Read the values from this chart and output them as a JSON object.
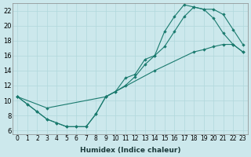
{
  "xlabel": "Humidex (Indice chaleur)",
  "bg_color": "#cce8ec",
  "line_color": "#1a7a6e",
  "xlim": [
    -0.5,
    23.5
  ],
  "ylim": [
    5.5,
    23.0
  ],
  "xticks": [
    0,
    1,
    2,
    3,
    4,
    5,
    6,
    7,
    8,
    9,
    10,
    11,
    12,
    13,
    14,
    15,
    16,
    17,
    18,
    19,
    20,
    21,
    22,
    23
  ],
  "yticks": [
    6,
    8,
    10,
    12,
    14,
    16,
    18,
    20,
    22
  ],
  "line1_x": [
    0,
    1,
    2,
    3,
    4,
    5,
    6,
    7,
    8,
    9,
    10,
    11,
    12,
    13,
    14,
    15,
    16,
    17,
    18,
    19,
    20,
    21,
    22,
    23
  ],
  "line1_y": [
    10.5,
    9.5,
    8.5,
    7.5,
    7.0,
    6.5,
    6.5,
    6.5,
    8.2,
    10.5,
    11.2,
    13.0,
    13.5,
    15.5,
    16.0,
    19.2,
    21.2,
    22.8,
    22.5,
    22.2,
    21.0,
    19.0,
    17.5,
    16.5
  ],
  "line2_x": [
    0,
    1,
    2,
    3,
    4,
    5,
    6,
    7,
    8,
    9,
    10,
    11,
    12,
    13,
    14,
    15,
    16,
    17,
    18,
    19,
    20,
    21,
    22,
    23
  ],
  "line2_y": [
    10.5,
    9.5,
    8.5,
    7.5,
    7.0,
    6.5,
    6.5,
    6.5,
    8.2,
    10.5,
    11.2,
    12.0,
    13.2,
    14.8,
    16.0,
    17.2,
    19.2,
    21.2,
    22.5,
    22.2,
    22.2,
    21.5,
    19.5,
    17.5
  ],
  "line3_x": [
    0,
    3,
    9,
    14,
    18,
    19,
    20,
    21,
    22,
    23
  ],
  "line3_y": [
    10.5,
    9.0,
    10.5,
    14.0,
    16.5,
    16.8,
    17.2,
    17.5,
    17.5,
    16.5
  ],
  "xlabel_fontsize": 6.5,
  "tick_fontsize": 5.5,
  "ytick_fontsize": 6.0
}
